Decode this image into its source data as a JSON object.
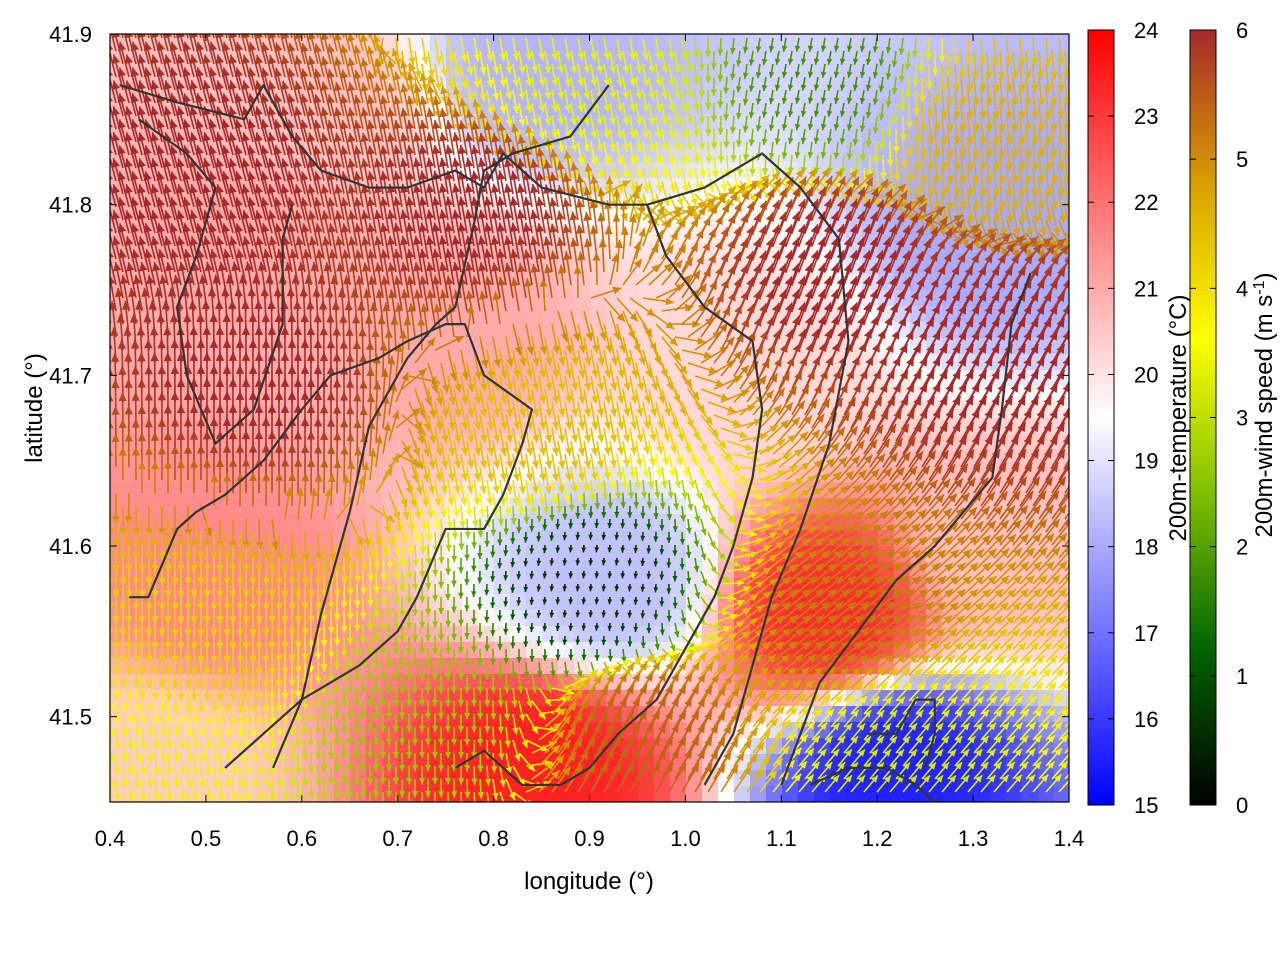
{
  "chart_data": {
    "type": "heatmap",
    "title": "",
    "xlabel": "longitude (°)",
    "ylabel": "latitude (°)",
    "xlim": [
      0.4,
      1.4
    ],
    "ylim": [
      41.45,
      41.9
    ],
    "x_ticks": [
      {
        "value": 0.4,
        "label": "0.4"
      },
      {
        "value": 0.5,
        "label": "0.5"
      },
      {
        "value": 0.6,
        "label": "0.6"
      },
      {
        "value": 0.7,
        "label": "0.7"
      },
      {
        "value": 0.8,
        "label": "0.8"
      },
      {
        "value": 0.9,
        "label": "0.9"
      },
      {
        "value": 1.0,
        "label": "1.0"
      },
      {
        "value": 1.1,
        "label": "1.1"
      },
      {
        "value": 1.2,
        "label": "1.2"
      },
      {
        "value": 1.3,
        "label": "1.3"
      },
      {
        "value": 1.4,
        "label": "1.4"
      }
    ],
    "y_ticks": [
      {
        "value": 41.5,
        "label": "41.5"
      },
      {
        "value": 41.6,
        "label": "41.6"
      },
      {
        "value": 41.7,
        "label": "41.7"
      },
      {
        "value": 41.8,
        "label": "41.8"
      },
      {
        "value": 41.9,
        "label": "41.9"
      }
    ],
    "temperature_colorbar": {
      "label": "200m-temperature (°C)",
      "range": [
        15,
        24
      ],
      "ticks": [
        {
          "value": 15,
          "label": "15"
        },
        {
          "value": 16,
          "label": "16"
        },
        {
          "value": 17,
          "label": "17"
        },
        {
          "value": 18,
          "label": "18"
        },
        {
          "value": 19,
          "label": "19"
        },
        {
          "value": 20,
          "label": "20"
        },
        {
          "value": 21,
          "label": "21"
        },
        {
          "value": 22,
          "label": "22"
        },
        {
          "value": 23,
          "label": "23"
        },
        {
          "value": 24,
          "label": "24"
        }
      ],
      "colors": [
        "#0000ff",
        "#ffffff",
        "#ff0000"
      ]
    },
    "wind_colorbar": {
      "label_base": "200m-wind speed (m s",
      "label_sup": "-1",
      "label_end": ")",
      "range": [
        0,
        6
      ],
      "ticks": [
        {
          "value": 0,
          "label": "0"
        },
        {
          "value": 1,
          "label": "1"
        },
        {
          "value": 2,
          "label": "2"
        },
        {
          "value": 3,
          "label": "3"
        },
        {
          "value": 4,
          "label": "4"
        },
        {
          "value": 5,
          "label": "5"
        },
        {
          "value": 6,
          "label": "6"
        }
      ],
      "colors": [
        "#000000",
        "#006400",
        "#7fbf00",
        "#ffff00",
        "#d8a000",
        "#a52a2a"
      ]
    },
    "temperature_field": [
      {
        "lon": 0.5,
        "lat": 41.57,
        "value": 21.6
      },
      {
        "lon": 0.62,
        "lat": 41.85,
        "value": 20.6
      },
      {
        "lon": 0.92,
        "lat": 41.58,
        "value": 18.4
      },
      {
        "lon": 1.15,
        "lat": 41.56,
        "value": 23.2
      },
      {
        "lon": 0.85,
        "lat": 41.47,
        "value": 23.4
      },
      {
        "lon": 1.22,
        "lat": 41.47,
        "value": 15.6
      },
      {
        "lon": 1.32,
        "lat": 41.78,
        "value": 18.0
      },
      {
        "lon": 0.85,
        "lat": 41.88,
        "value": 18.2
      },
      {
        "lon": 0.75,
        "lat": 41.73,
        "value": 21.0
      },
      {
        "lon": 1.08,
        "lat": 41.7,
        "value": 20.2
      },
      {
        "lon": 1.33,
        "lat": 41.6,
        "value": 20.6
      },
      {
        "lon": 0.55,
        "lat": 41.78,
        "value": 21.0
      },
      {
        "lon": 0.45,
        "lat": 41.48,
        "value": 20.4
      }
    ],
    "wind_field": [
      {
        "lon": 0.5,
        "lat": 41.8,
        "dir_deg": 345,
        "speed": 6.0
      },
      {
        "lon": 0.78,
        "lat": 41.78,
        "dir_deg": 350,
        "speed": 6.0
      },
      {
        "lon": 1.15,
        "lat": 41.75,
        "dir_deg": 20,
        "speed": 6.0
      },
      {
        "lon": 0.55,
        "lat": 41.68,
        "dir_deg": 0,
        "speed": 6.0
      },
      {
        "lon": 0.85,
        "lat": 41.68,
        "dir_deg": 170,
        "speed": 4.4
      },
      {
        "lon": 0.9,
        "lat": 41.58,
        "dir_deg": 185,
        "speed": 0.6
      },
      {
        "lon": 0.72,
        "lat": 41.5,
        "dir_deg": 180,
        "speed": 2.6
      },
      {
        "lon": 0.5,
        "lat": 41.56,
        "dir_deg": 180,
        "speed": 4.2
      },
      {
        "lon": 1.15,
        "lat": 41.55,
        "dir_deg": 50,
        "speed": 5.2
      },
      {
        "lon": 1.3,
        "lat": 41.7,
        "dir_deg": 30,
        "speed": 6.0
      },
      {
        "lon": 1.2,
        "lat": 41.47,
        "dir_deg": 40,
        "speed": 3.2
      },
      {
        "lon": 0.9,
        "lat": 41.88,
        "dir_deg": 170,
        "speed": 3.4
      },
      {
        "lon": 1.15,
        "lat": 41.88,
        "dir_deg": 190,
        "speed": 1.8
      },
      {
        "lon": 1.3,
        "lat": 41.85,
        "dir_deg": 175,
        "speed": 4.6
      },
      {
        "lon": 0.45,
        "lat": 41.47,
        "dir_deg": 175,
        "speed": 3.4
      },
      {
        "lon": 0.95,
        "lat": 41.48,
        "dir_deg": 30,
        "speed": 5.4
      }
    ],
    "boundary_lines": [
      [
        [
          0.41,
          41.87
        ],
        [
          0.47,
          41.86
        ],
        [
          0.54,
          41.85
        ],
        [
          0.56,
          41.87
        ],
        [
          0.59,
          41.84
        ],
        [
          0.62,
          41.82
        ],
        [
          0.67,
          41.81
        ],
        [
          0.71,
          41.81
        ],
        [
          0.76,
          41.82
        ],
        [
          0.79,
          41.81
        ],
        [
          0.81,
          41.83
        ],
        [
          0.85,
          41.81
        ],
        [
          0.92,
          41.8
        ],
        [
          0.96,
          41.8
        ]
      ],
      [
        [
          0.43,
          41.85
        ],
        [
          0.48,
          41.83
        ],
        [
          0.51,
          41.81
        ],
        [
          0.49,
          41.77
        ],
        [
          0.47,
          41.74
        ],
        [
          0.48,
          41.7
        ],
        [
          0.51,
          41.66
        ],
        [
          0.55,
          41.68
        ],
        [
          0.58,
          41.73
        ],
        [
          0.58,
          41.78
        ],
        [
          0.59,
          41.8
        ]
      ],
      [
        [
          0.42,
          41.57
        ],
        [
          0.44,
          41.57
        ],
        [
          0.47,
          41.61
        ],
        [
          0.49,
          41.62
        ],
        [
          0.52,
          41.63
        ],
        [
          0.56,
          41.65
        ],
        [
          0.6,
          41.68
        ],
        [
          0.63,
          41.7
        ],
        [
          0.68,
          41.71
        ],
        [
          0.71,
          41.72
        ],
        [
          0.75,
          41.73
        ],
        [
          0.77,
          41.73
        ],
        [
          0.79,
          41.7
        ],
        [
          0.84,
          41.68
        ],
        [
          0.83,
          41.66
        ],
        [
          0.81,
          41.63
        ],
        [
          0.79,
          41.61
        ],
        [
          0.75,
          41.61
        ],
        [
          0.72,
          41.57
        ],
        [
          0.7,
          41.55
        ],
        [
          0.66,
          41.53
        ],
        [
          0.63,
          41.52
        ],
        [
          0.6,
          41.51
        ],
        [
          0.56,
          41.49
        ],
        [
          0.52,
          41.47
        ]
      ],
      [
        [
          0.92,
          41.87
        ],
        [
          0.88,
          41.84
        ],
        [
          0.82,
          41.83
        ],
        [
          0.79,
          41.82
        ],
        [
          0.78,
          41.79
        ],
        [
          0.76,
          41.74
        ],
        [
          0.74,
          41.73
        ],
        [
          0.71,
          41.71
        ],
        [
          0.67,
          41.67
        ],
        [
          0.65,
          41.62
        ],
        [
          0.62,
          41.56
        ],
        [
          0.6,
          41.51
        ],
        [
          0.57,
          41.47
        ]
      ],
      [
        [
          0.96,
          41.8
        ],
        [
          0.98,
          41.77
        ],
        [
          1.02,
          41.74
        ],
        [
          1.07,
          41.72
        ],
        [
          1.08,
          41.68
        ],
        [
          1.07,
          41.64
        ],
        [
          1.05,
          41.6
        ],
        [
          1.03,
          41.57
        ],
        [
          1.0,
          41.54
        ],
        [
          0.97,
          41.51
        ],
        [
          0.93,
          41.49
        ],
        [
          0.9,
          41.47
        ],
        [
          0.87,
          41.46
        ],
        [
          0.83,
          41.46
        ],
        [
          0.79,
          41.48
        ],
        [
          0.76,
          41.47
        ]
      ],
      [
        [
          0.96,
          41.8
        ],
        [
          1.02,
          41.81
        ],
        [
          1.08,
          41.83
        ],
        [
          1.12,
          41.81
        ],
        [
          1.16,
          41.78
        ],
        [
          1.17,
          41.72
        ],
        [
          1.15,
          41.66
        ],
        [
          1.12,
          41.61
        ],
        [
          1.09,
          41.57
        ],
        [
          1.07,
          41.53
        ],
        [
          1.05,
          41.49
        ],
        [
          1.02,
          41.46
        ]
      ],
      [
        [
          1.36,
          41.76
        ],
        [
          1.34,
          41.73
        ],
        [
          1.33,
          41.68
        ],
        [
          1.32,
          41.64
        ],
        [
          1.29,
          41.62
        ],
        [
          1.26,
          41.6
        ],
        [
          1.22,
          41.58
        ],
        [
          1.18,
          41.55
        ],
        [
          1.14,
          41.52
        ],
        [
          1.12,
          41.49
        ],
        [
          1.1,
          41.46
        ]
      ],
      [
        [
          1.19,
          41.49
        ],
        [
          1.22,
          41.49
        ],
        [
          1.24,
          41.51
        ],
        [
          1.26,
          41.51
        ],
        [
          1.26,
          41.49
        ],
        [
          1.25,
          41.47
        ]
      ],
      [
        [
          1.13,
          41.46
        ],
        [
          1.17,
          41.47
        ],
        [
          1.21,
          41.47
        ],
        [
          1.24,
          41.46
        ],
        [
          1.26,
          41.45
        ]
      ]
    ]
  }
}
